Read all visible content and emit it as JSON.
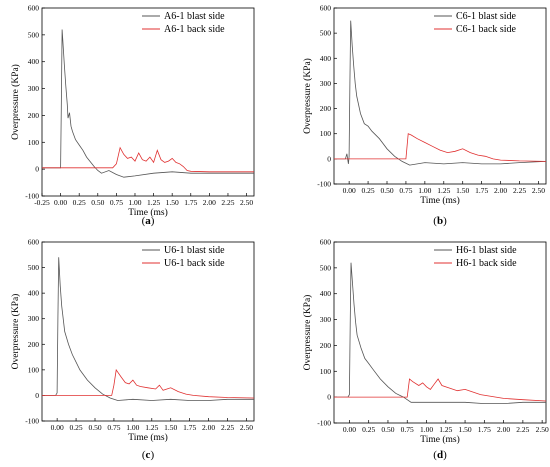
{
  "chart_data": [
    {
      "id": "a",
      "type": "line",
      "panel_label": {
        "open": "(",
        "letter": "a",
        "close": ")"
      },
      "xlabel": "Time (ms)",
      "ylabel": "Overpressure (KPa)",
      "xlim": [
        -0.25,
        2.6
      ],
      "ylim": [
        -100,
        600
      ],
      "xticks": [
        "-0.25",
        "0.00",
        "0.25",
        "0.50",
        "0.75",
        "1.00",
        "1.25",
        "1.50",
        "1.75",
        "2.00",
        "2.25",
        "2.50"
      ],
      "yticks": [
        "-100",
        "0",
        "100",
        "200",
        "300",
        "400",
        "500",
        "600"
      ],
      "legend_position": "top-right",
      "series": [
        {
          "name": "A6-1 blast side",
          "color": "#555555",
          "x": [
            -0.25,
            -0.02,
            0.0,
            0.01,
            0.02,
            0.03,
            0.05,
            0.07,
            0.09,
            0.1,
            0.12,
            0.14,
            0.16,
            0.2,
            0.25,
            0.3,
            0.35,
            0.45,
            0.5,
            0.55,
            0.65,
            0.75,
            0.85,
            1.0,
            1.25,
            1.5,
            1.75,
            2.0,
            2.25,
            2.6
          ],
          "y": [
            5,
            5,
            5,
            230,
            520,
            480,
            390,
            310,
            240,
            190,
            210,
            160,
            140,
            110,
            90,
            70,
            45,
            10,
            -5,
            -15,
            -5,
            -20,
            -30,
            -25,
            -15,
            -10,
            -15,
            -15,
            -15,
            -15
          ]
        },
        {
          "name": "A6-1 back side",
          "color": "#e03030",
          "x": [
            -0.25,
            0.7,
            0.75,
            0.8,
            0.85,
            0.9,
            0.95,
            1.0,
            1.05,
            1.1,
            1.15,
            1.2,
            1.25,
            1.3,
            1.35,
            1.4,
            1.45,
            1.5,
            1.55,
            1.6,
            1.65,
            1.7,
            1.75,
            2.0,
            2.25,
            2.6
          ],
          "y": [
            5,
            5,
            20,
            80,
            55,
            40,
            45,
            30,
            60,
            35,
            30,
            45,
            25,
            70,
            35,
            25,
            30,
            40,
            25,
            20,
            10,
            -5,
            -8,
            -10,
            -10,
            -10
          ]
        }
      ]
    },
    {
      "id": "b",
      "type": "line",
      "panel_label": {
        "open": "(",
        "letter": "b",
        "close": ")"
      },
      "xlabel": "Time (ms)",
      "ylabel": "Overpressure (KPa)",
      "xlim": [
        -0.2,
        2.6
      ],
      "ylim": [
        -100,
        600
      ],
      "xticks": [
        "0.00",
        "0.25",
        "0.50",
        "0.75",
        "1.00",
        "1.25",
        "1.50",
        "1.75",
        "2.00",
        "2.25",
        "2.50"
      ],
      "yticks": [
        "-100",
        "0",
        "100",
        "200",
        "300",
        "400",
        "500",
        "600"
      ],
      "legend_position": "top-right",
      "series": [
        {
          "name": "C6-1 blast side",
          "color": "#555555",
          "x": [
            -0.2,
            -0.05,
            -0.03,
            -0.01,
            0.0,
            0.01,
            0.02,
            0.04,
            0.06,
            0.08,
            0.1,
            0.15,
            0.2,
            0.25,
            0.3,
            0.4,
            0.5,
            0.6,
            0.7,
            0.8,
            1.0,
            1.25,
            1.5,
            1.75,
            2.0,
            2.25,
            2.6
          ],
          "y": [
            0,
            0,
            20,
            -20,
            10,
            300,
            550,
            450,
            370,
            300,
            250,
            180,
            140,
            130,
            110,
            80,
            40,
            10,
            -10,
            -25,
            -15,
            -20,
            -15,
            -20,
            -20,
            -15,
            -10
          ]
        },
        {
          "name": "C6-1 back side",
          "color": "#e03030",
          "x": [
            -0.2,
            0.75,
            0.78,
            0.82,
            0.9,
            1.0,
            1.1,
            1.2,
            1.3,
            1.4,
            1.5,
            1.6,
            1.7,
            1.8,
            1.9,
            2.0,
            2.25,
            2.6
          ],
          "y": [
            0,
            0,
            100,
            95,
            80,
            65,
            50,
            35,
            25,
            30,
            40,
            25,
            15,
            10,
            0,
            -5,
            -8,
            -10
          ]
        }
      ]
    },
    {
      "id": "c",
      "type": "line",
      "panel_label": {
        "open": "(",
        "letter": "c",
        "close": ")"
      },
      "xlabel": "Time (ms)",
      "ylabel": "Overpressure (KPa)",
      "xlim": [
        -0.2,
        2.6
      ],
      "ylim": [
        -100,
        600
      ],
      "xticks": [
        "0.00",
        "0.25",
        "0.50",
        "0.75",
        "1.00",
        "1.25",
        "1.50",
        "1.75",
        "2.00",
        "2.25",
        "2.50"
      ],
      "yticks": [
        "-100",
        "0",
        "100",
        "200",
        "300",
        "400",
        "500",
        "600"
      ],
      "legend_position": "top-right",
      "series": [
        {
          "name": "U6-1 blast side",
          "color": "#555555",
          "x": [
            -0.2,
            -0.02,
            0.0,
            0.01,
            0.02,
            0.04,
            0.06,
            0.08,
            0.1,
            0.15,
            0.2,
            0.25,
            0.3,
            0.4,
            0.5,
            0.6,
            0.7,
            0.8,
            1.0,
            1.25,
            1.5,
            1.75,
            2.0,
            2.25,
            2.6
          ],
          "y": [
            0,
            0,
            10,
            300,
            540,
            430,
            350,
            300,
            250,
            200,
            160,
            130,
            100,
            60,
            30,
            5,
            -10,
            -20,
            -15,
            -20,
            -15,
            -20,
            -20,
            -15,
            -15
          ]
        },
        {
          "name": "U6-1 back side",
          "color": "#e03030",
          "x": [
            -0.2,
            0.72,
            0.75,
            0.78,
            0.85,
            0.9,
            0.95,
            1.0,
            1.05,
            1.1,
            1.2,
            1.3,
            1.35,
            1.4,
            1.5,
            1.6,
            1.7,
            1.8,
            2.0,
            2.25,
            2.6
          ],
          "y": [
            0,
            0,
            40,
            100,
            70,
            50,
            45,
            60,
            40,
            35,
            30,
            25,
            40,
            20,
            30,
            15,
            5,
            0,
            -5,
            -8,
            -10
          ]
        }
      ]
    },
    {
      "id": "d",
      "type": "line",
      "panel_label": {
        "open": "(",
        "letter": "d",
        "close": ")"
      },
      "xlabel": "Time (ms)",
      "ylabel": "Overpressure (KPa)",
      "xlim": [
        -0.2,
        2.55
      ],
      "ylim": [
        -100,
        600
      ],
      "xticks": [
        "0.00",
        "0.25",
        "0.50",
        "0.75",
        "1.00",
        "1.25",
        "1.50",
        "1.75",
        "2.00",
        "2.25",
        "2.50"
      ],
      "yticks": [
        "-100",
        "0",
        "100",
        "200",
        "300",
        "400",
        "500",
        "600"
      ],
      "legend_position": "top-right",
      "series": [
        {
          "name": "H6-1 blast side",
          "color": "#555555",
          "x": [
            -0.2,
            -0.02,
            0.0,
            0.01,
            0.02,
            0.04,
            0.06,
            0.08,
            0.1,
            0.15,
            0.2,
            0.25,
            0.3,
            0.4,
            0.5,
            0.6,
            0.7,
            0.8,
            1.0,
            1.25,
            1.5,
            1.75,
            2.0,
            2.25,
            2.55
          ],
          "y": [
            0,
            0,
            10,
            280,
            520,
            440,
            360,
            290,
            240,
            190,
            150,
            130,
            110,
            70,
            40,
            15,
            0,
            -20,
            -20,
            -20,
            -20,
            -25,
            -25,
            -20,
            -20
          ]
        },
        {
          "name": "H6-1 back side",
          "color": "#e03030",
          "x": [
            -0.2,
            0.75,
            0.78,
            0.82,
            0.9,
            0.95,
            1.0,
            1.05,
            1.1,
            1.15,
            1.2,
            1.3,
            1.4,
            1.5,
            1.6,
            1.7,
            1.8,
            2.0,
            2.25,
            2.55
          ],
          "y": [
            0,
            0,
            70,
            60,
            45,
            55,
            40,
            30,
            50,
            70,
            45,
            35,
            25,
            30,
            20,
            10,
            5,
            -5,
            -10,
            -15
          ]
        }
      ]
    }
  ]
}
